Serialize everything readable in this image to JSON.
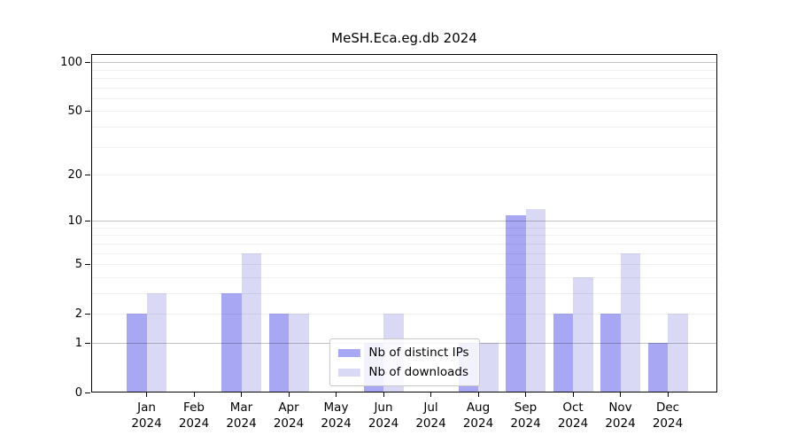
{
  "chart_data": {
    "type": "bar",
    "title": "MeSH.Eca.eg.db 2024",
    "categories": [
      "Jan 2024",
      "Feb 2024",
      "Mar 2024",
      "Apr 2024",
      "May 2024",
      "Jun 2024",
      "Jul 2024",
      "Aug 2024",
      "Sep 2024",
      "Oct 2024",
      "Nov 2024",
      "Dec 2024"
    ],
    "series": [
      {
        "name": "Nb of distinct IPs",
        "color": "#a7a7f3",
        "values": [
          2,
          0,
          3,
          2,
          0,
          1,
          0,
          1,
          11,
          2,
          2,
          1
        ]
      },
      {
        "name": "Nb of downloads",
        "color": "#d9d9f6",
        "values": [
          3,
          0,
          6,
          2,
          0,
          2,
          0,
          1,
          12,
          4,
          6,
          2
        ]
      }
    ],
    "xlabel": "",
    "ylabel": "",
    "yscale": "log1p",
    "ylim": [
      0,
      113
    ],
    "yticks": [
      0,
      1,
      2,
      5,
      10,
      20,
      50,
      100
    ],
    "major_gridlines": [
      1,
      10,
      100
    ],
    "minor_gridlines": [
      2,
      3,
      4,
      5,
      6,
      7,
      8,
      9,
      20,
      30,
      40,
      50,
      60,
      70,
      80,
      90
    ],
    "grid": "horizontal",
    "legend_position": "lower center"
  },
  "colors": {
    "background": "#ffffff",
    "axis": "#000000",
    "major_grid": "#c7c7c7",
    "minor_grid": "#efefef",
    "distinct_ips": "#a7a7f3",
    "downloads": "#d9d9f6"
  }
}
